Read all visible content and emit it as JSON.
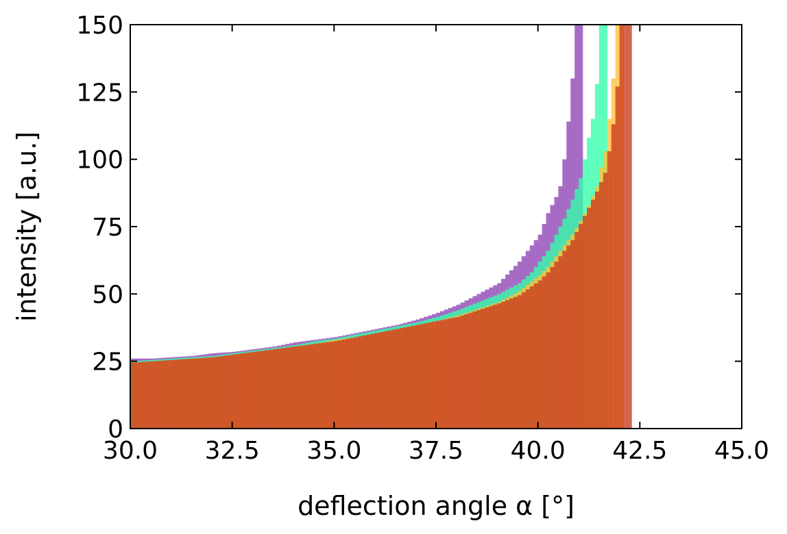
{
  "chart_data": {
    "type": "bar",
    "xlabel": "deflection angle α [°]",
    "ylabel": "intensity [a.u.]",
    "xlim": [
      30.0,
      45.0
    ],
    "ylim": [
      0,
      150
    ],
    "x_ticks": [
      "30.0",
      "32.5",
      "35.0",
      "37.5",
      "40.0",
      "42.5",
      "45.0"
    ],
    "y_ticks": [
      "0",
      "25",
      "50",
      "75",
      "100",
      "125",
      "150"
    ],
    "bin_width": 0.1,
    "series": [
      {
        "color": "#8e44b5",
        "bin_starts": [
          30.0,
          30.5,
          31.0,
          31.5,
          32.0,
          32.5,
          33.0,
          33.5,
          34.0,
          34.5,
          35.0,
          35.5,
          36.0,
          36.5,
          37.0,
          37.5,
          38.0,
          38.5,
          39.0,
          39.5,
          39.8,
          40.0,
          40.2,
          40.4,
          40.5,
          40.6,
          40.7,
          40.8,
          40.9,
          41.0
        ],
        "values": [
          26,
          26,
          26.5,
          27,
          28,
          28.5,
          29.5,
          30.5,
          32,
          33,
          34,
          35.5,
          37,
          38.5,
          40.5,
          43,
          46,
          50,
          54,
          62,
          68,
          72,
          80,
          86,
          90,
          100,
          114,
          130,
          150,
          150
        ]
      },
      {
        "color": "#33ffaa",
        "bin_starts": [
          30.0,
          30.5,
          31.0,
          31.5,
          32.0,
          32.5,
          33.0,
          33.5,
          34.0,
          34.5,
          35.0,
          35.5,
          36.0,
          36.5,
          37.0,
          37.5,
          38.0,
          38.5,
          39.0,
          39.5,
          39.8,
          40.0,
          40.2,
          40.4,
          40.6,
          40.8,
          41.0,
          41.1,
          41.2,
          41.3,
          41.4,
          41.5,
          41.6
        ],
        "values": [
          25,
          25.5,
          26,
          26.5,
          27,
          28,
          29,
          30,
          31,
          32.5,
          33.5,
          35,
          36.5,
          38,
          39.5,
          41.5,
          44,
          47,
          50,
          54,
          58,
          62,
          66,
          72,
          78,
          85,
          93,
          100,
          108,
          115,
          128,
          150,
          150
        ]
      },
      {
        "color": "#ffc23a",
        "bin_starts": [
          30.0,
          30.5,
          31.0,
          31.5,
          32.0,
          32.5,
          33.0,
          33.5,
          34.0,
          34.5,
          35.0,
          35.5,
          36.0,
          36.5,
          37.0,
          37.5,
          38.0,
          38.5,
          39.0,
          39.5,
          40.0,
          40.2,
          40.4,
          40.6,
          40.8,
          41.0,
          41.2,
          41.4,
          41.5,
          41.6,
          41.7,
          41.8,
          41.9,
          42.0
        ],
        "values": [
          24.5,
          25,
          25.5,
          26,
          26.5,
          27.5,
          28.5,
          29.5,
          30.5,
          31.5,
          33,
          34,
          35.5,
          37,
          38.5,
          40,
          42,
          44.5,
          47,
          51,
          57,
          60,
          64,
          68,
          72,
          77,
          83,
          90,
          97,
          103,
          115,
          130,
          150,
          150
        ]
      },
      {
        "color": "#cc3a1e",
        "bin_starts": [
          30.0,
          30.5,
          31.0,
          31.5,
          32.0,
          32.5,
          33.0,
          33.5,
          34.0,
          34.5,
          35.0,
          35.5,
          36.0,
          36.5,
          37.0,
          37.5,
          38.0,
          38.5,
          39.0,
          39.5,
          40.0,
          40.2,
          40.4,
          40.6,
          40.8,
          41.0,
          41.2,
          41.4,
          41.6,
          41.7,
          41.8,
          41.9,
          42.0,
          42.1,
          42.2
        ],
        "values": [
          24.5,
          25,
          25.5,
          26,
          26.5,
          27.5,
          28.5,
          29.5,
          30.5,
          31.5,
          32.5,
          34,
          35.5,
          37,
          38.5,
          40,
          41.5,
          44,
          46.5,
          49.5,
          55,
          58,
          62,
          66,
          70,
          76,
          82,
          88,
          95,
          103,
          113,
          127,
          150,
          150,
          150
        ]
      }
    ]
  }
}
